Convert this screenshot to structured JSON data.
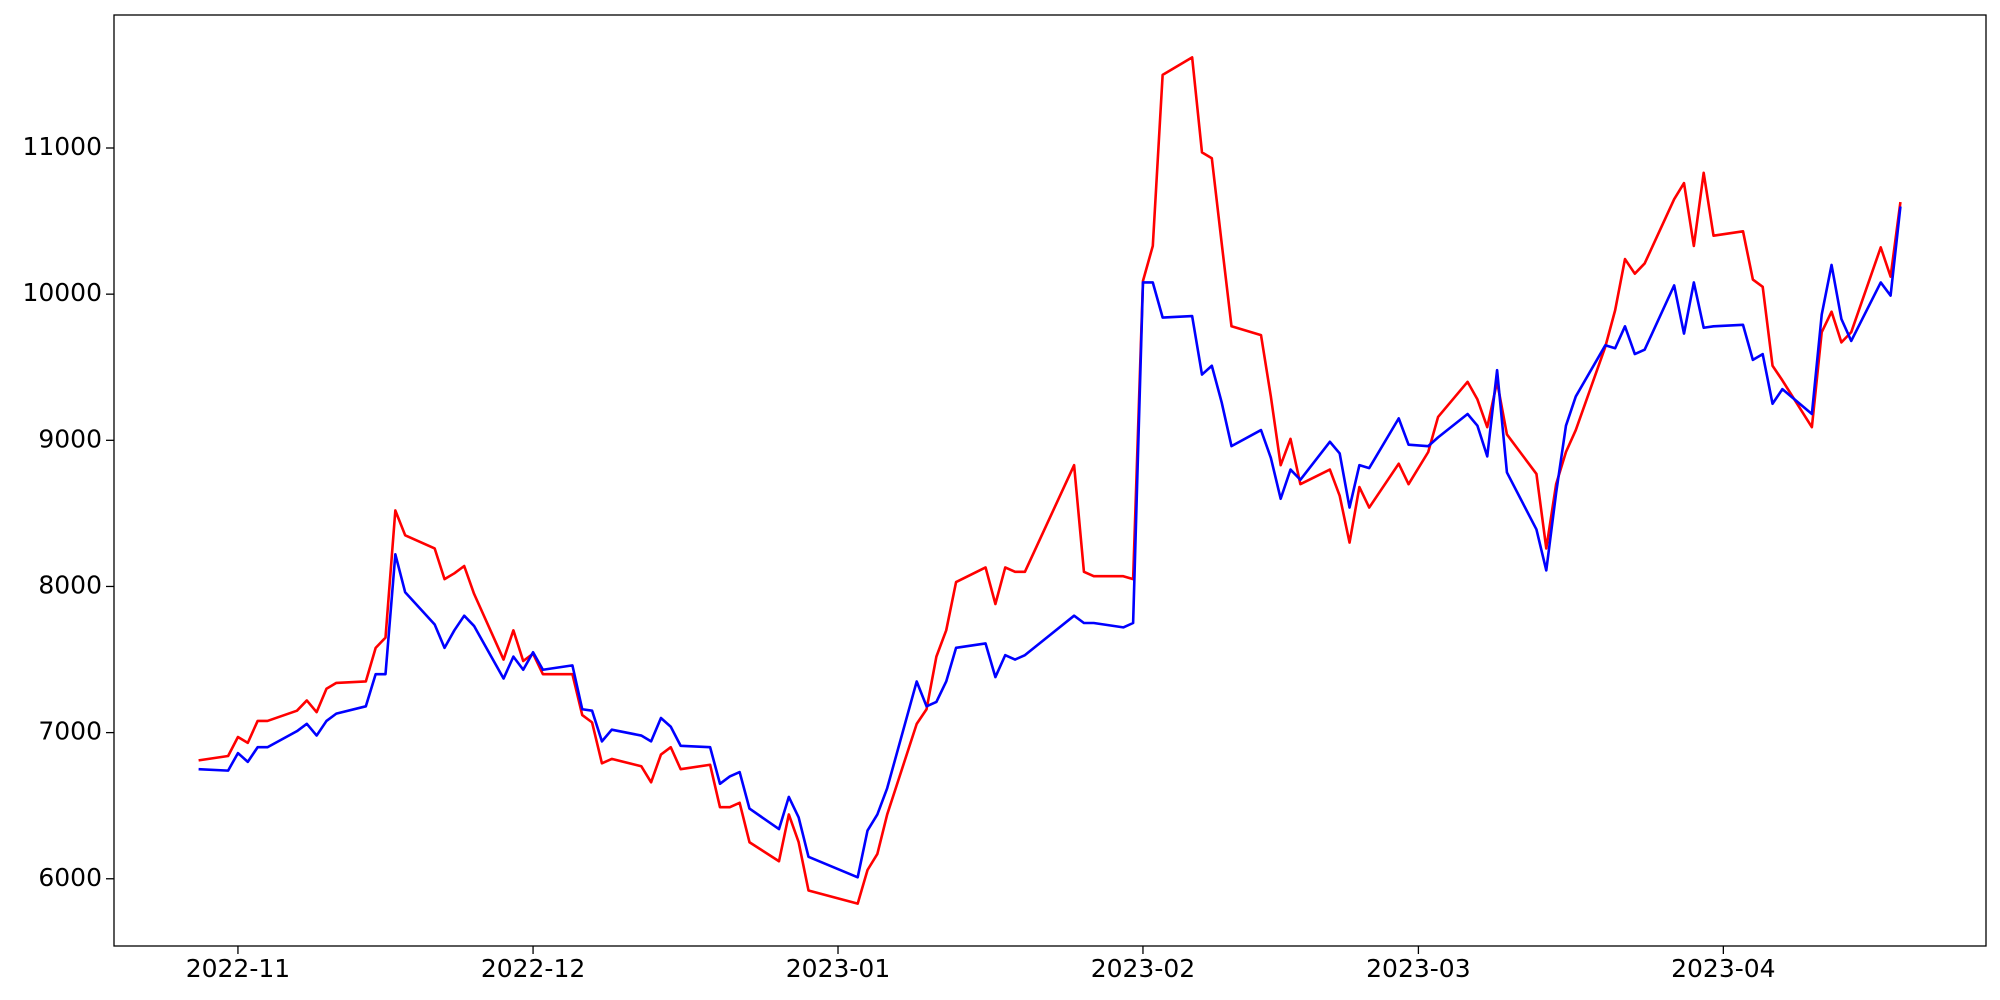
{
  "chart_data": {
    "type": "line",
    "x": [
      19293,
      19296,
      19297,
      19298,
      19299,
      19300,
      19303,
      19304,
      19305,
      19306,
      19307,
      19310,
      19311,
      19312,
      19313,
      19314,
      19317,
      19318,
      19319,
      19320,
      19321,
      19324,
      19325,
      19326,
      19327,
      19328,
      19331,
      19332,
      19333,
      19334,
      19335,
      19338,
      19339,
      19340,
      19341,
      19342,
      19345,
      19346,
      19347,
      19348,
      19349,
      19352,
      19353,
      19354,
      19355,
      19360,
      19361,
      19362,
      19363,
      19366,
      19367,
      19368,
      19369,
      19370,
      19373,
      19374,
      19375,
      19376,
      19377,
      19382,
      19383,
      19384,
      19387,
      19388,
      19389,
      19390,
      19391,
      19394,
      19395,
      19396,
      19397,
      19398,
      19401,
      19402,
      19403,
      19404,
      19405,
      19408,
      19409,
      19410,
      19411,
      19412,
      19415,
      19416,
      19418,
      19419,
      19422,
      19423,
      19424,
      19425,
      19426,
      19429,
      19430,
      19431,
      19432,
      19433,
      19436,
      19437,
      19438,
      19439,
      19440,
      19443,
      19444,
      19445,
      19446,
      19447,
      19450,
      19451,
      19452,
      19453,
      19454,
      19457,
      19458,
      19459,
      19460,
      19461,
      19464,
      19465,
      19466
    ],
    "series": [
      {
        "color": "#ff0000",
        "values": [
          6810,
          6840,
          6970,
          6930,
          7080,
          7080,
          7150,
          7220,
          7140,
          7300,
          7340,
          7350,
          7580,
          7650,
          8520,
          8350,
          8260,
          8050,
          8090,
          8140,
          7950,
          7500,
          7700,
          7490,
          7540,
          7400,
          7400,
          7120,
          7070,
          6790,
          6820,
          6770,
          6660,
          6850,
          6900,
          6750,
          6780,
          6490,
          6490,
          6520,
          6250,
          6120,
          6440,
          6250,
          5920,
          5830,
          6060,
          6170,
          6440,
          7060,
          7160,
          7520,
          7700,
          8030,
          8130,
          7880,
          8130,
          8100,
          8100,
          8830,
          8100,
          8070,
          8070,
          8050,
          10090,
          10330,
          11500,
          11620,
          10970,
          10930,
          10350,
          9780,
          9720,
          9300,
          8830,
          9010,
          8700,
          8800,
          8620,
          8300,
          8680,
          8540,
          8840,
          8700,
          8920,
          9160,
          9400,
          9280,
          9090,
          9400,
          9040,
          8770,
          8260,
          8700,
          8920,
          9070,
          9640,
          9890,
          10240,
          10140,
          10210,
          10650,
          10760,
          10330,
          10830,
          10400,
          10430,
          10100,
          10050,
          9510,
          9410,
          9090,
          9740,
          9880,
          9670,
          9740,
          10320,
          10120,
          10630
        ]
      },
      {
        "color": "#0000ff",
        "values": [
          6750,
          6740,
          6860,
          6800,
          6900,
          6900,
          7010,
          7060,
          6980,
          7080,
          7130,
          7180,
          7400,
          7400,
          8220,
          7960,
          7740,
          7580,
          7700,
          7800,
          7730,
          7370,
          7520,
          7430,
          7550,
          7430,
          7460,
          7160,
          7150,
          6940,
          7020,
          6980,
          6940,
          7100,
          7040,
          6910,
          6900,
          6650,
          6700,
          6730,
          6480,
          6340,
          6560,
          6420,
          6150,
          6010,
          6330,
          6440,
          6620,
          7350,
          7180,
          7210,
          7350,
          7580,
          7610,
          7380,
          7530,
          7500,
          7530,
          7800,
          7750,
          7750,
          7720,
          7750,
          10080,
          10080,
          9840,
          9850,
          9450,
          9510,
          9260,
          8960,
          9070,
          8880,
          8600,
          8800,
          8730,
          8990,
          8910,
          8540,
          8830,
          8810,
          9150,
          8970,
          8960,
          9020,
          9180,
          9100,
          8890,
          9480,
          8780,
          8390,
          8110,
          8640,
          9100,
          9300,
          9650,
          9630,
          9780,
          9590,
          9620,
          10060,
          9730,
          10080,
          9770,
          9780,
          9790,
          9550,
          9590,
          9250,
          9350,
          9180,
          9860,
          10200,
          9830,
          9680,
          10080,
          9990,
          10600
        ]
      }
    ],
    "xlim": [
      19284.4,
      19474.7
    ],
    "xticks": [
      {
        "value": 19297,
        "label": "2022-11"
      },
      {
        "value": 19327,
        "label": "2022-12"
      },
      {
        "value": 19358,
        "label": "2023-01"
      },
      {
        "value": 19389,
        "label": "2023-02"
      },
      {
        "value": 19417,
        "label": "2023-03"
      },
      {
        "value": 19448,
        "label": "2023-04"
      }
    ],
    "ylim": [
      5540,
      11910
    ],
    "yticks": [
      6000,
      7000,
      8000,
      9000,
      10000,
      11000
    ],
    "grid": false
  }
}
